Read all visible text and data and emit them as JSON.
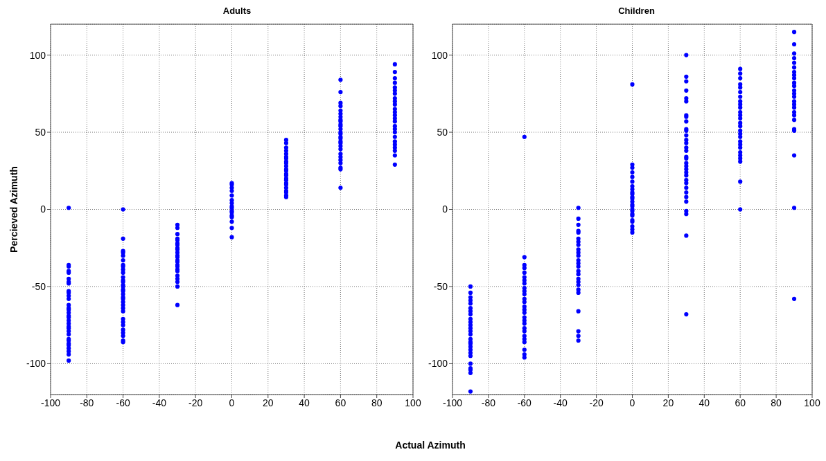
{
  "chart_data": [
    {
      "type": "scatter",
      "title": "Adults",
      "ylabel": "Percieved Azimuth",
      "xlabel": "Actual Azimuth",
      "marker": "circle",
      "grid": true,
      "xlim": [
        -100,
        100
      ],
      "xticks": [
        -100,
        -80,
        -60,
        -40,
        -20,
        0,
        20,
        40,
        60,
        80,
        100
      ],
      "ylim": [
        -120,
        120
      ],
      "yticks": [
        -100,
        -50,
        0,
        50,
        100
      ],
      "series": [
        {
          "color": "#0000ff",
          "x": [
            -90,
            -90,
            -90,
            -90,
            -90,
            -90,
            -90,
            -90,
            -90,
            -90,
            -90,
            -90,
            -90,
            -90,
            -90,
            -90,
            -90,
            -90,
            -90,
            -90,
            -90,
            -90,
            -90,
            -90,
            -90,
            -90,
            -90,
            -90,
            -90,
            -90,
            -90,
            -90,
            -60,
            -60,
            -60,
            -60,
            -60,
            -60,
            -60,
            -60,
            -60,
            -60,
            -60,
            -60,
            -60,
            -60,
            -60,
            -60,
            -60,
            -60,
            -60,
            -60,
            -60,
            -60,
            -60,
            -60,
            -60,
            -60,
            -60,
            -60,
            -60,
            -60,
            -60,
            -60,
            -30,
            -30,
            -30,
            -30,
            -30,
            -30,
            -30,
            -30,
            -30,
            -30,
            -30,
            -30,
            -30,
            -30,
            -30,
            -30,
            -30,
            -30,
            -30,
            -30,
            -30,
            -30,
            -30,
            0,
            0,
            0,
            0,
            0,
            0,
            0,
            0,
            0,
            0,
            0,
            0,
            0,
            0,
            0,
            0,
            30,
            30,
            30,
            30,
            30,
            30,
            30,
            30,
            30,
            30,
            30,
            30,
            30,
            30,
            30,
            30,
            30,
            30,
            30,
            30,
            30,
            30,
            30,
            60,
            60,
            60,
            60,
            60,
            60,
            60,
            60,
            60,
            60,
            60,
            60,
            60,
            60,
            60,
            60,
            60,
            60,
            60,
            60,
            60,
            60,
            60,
            60,
            60,
            60,
            60,
            90,
            90,
            90,
            90,
            90,
            90,
            90,
            90,
            90,
            90,
            90,
            90,
            90,
            90,
            90,
            90,
            90,
            90,
            90,
            90,
            90,
            90,
            90,
            90,
            90
          ],
          "values": [
            1,
            -36,
            -37,
            -40,
            -41,
            -45,
            -47,
            -48,
            -53,
            -54,
            -56,
            -58,
            -62,
            -64,
            -65,
            -67,
            -69,
            -70,
            -72,
            -74,
            -76,
            -77,
            -79,
            -81,
            -84,
            -85,
            -87,
            -88,
            -90,
            -92,
            -94,
            -98,
            0,
            -19,
            -27,
            -28,
            -30,
            -33,
            -36,
            -37,
            -39,
            -41,
            -44,
            -46,
            -47,
            -49,
            -50,
            -52,
            -53,
            -55,
            -57,
            -58,
            -60,
            -62,
            -64,
            -66,
            -71,
            -73,
            -75,
            -78,
            -80,
            -82,
            -85,
            -86,
            -10,
            -12,
            -16,
            -19,
            -20,
            -22,
            -23,
            -25,
            -26,
            -28,
            -30,
            -31,
            -33,
            -34,
            -36,
            -37,
            -39,
            -40,
            -43,
            -45,
            -47,
            -50,
            -62,
            17,
            16,
            14,
            12,
            9,
            6,
            4,
            2,
            1,
            -1,
            -2,
            -4,
            -5,
            -8,
            -12,
            -18,
            45,
            43,
            40,
            38,
            36,
            34,
            33,
            31,
            30,
            28,
            26,
            25,
            23,
            22,
            20,
            19,
            17,
            16,
            14,
            12,
            11,
            9,
            8,
            84,
            76,
            69,
            67,
            64,
            62,
            60,
            58,
            57,
            55,
            54,
            52,
            50,
            49,
            47,
            46,
            44,
            43,
            41,
            39,
            36,
            34,
            32,
            30,
            27,
            26,
            14,
            94,
            89,
            85,
            82,
            79,
            77,
            75,
            72,
            70,
            68,
            65,
            63,
            61,
            59,
            57,
            54,
            52,
            50,
            47,
            44,
            42,
            40,
            38,
            35,
            29
          ]
        }
      ]
    },
    {
      "type": "scatter",
      "title": "Children",
      "marker": "circle",
      "grid": true,
      "xlim": [
        -100,
        100
      ],
      "xticks": [
        -100,
        -80,
        -60,
        -40,
        -20,
        0,
        20,
        40,
        60,
        80,
        100
      ],
      "ylim": [
        -120,
        120
      ],
      "yticks": [
        -100,
        -50,
        0,
        50,
        100
      ],
      "series": [
        {
          "color": "#0000ff",
          "x": [
            -90,
            -90,
            -90,
            -90,
            -90,
            -90,
            -90,
            -90,
            -90,
            -90,
            -90,
            -90,
            -90,
            -90,
            -90,
            -90,
            -90,
            -90,
            -90,
            -90,
            -90,
            -90,
            -90,
            -90,
            -90,
            -90,
            -60,
            -60,
            -60,
            -60,
            -60,
            -60,
            -60,
            -60,
            -60,
            -60,
            -60,
            -60,
            -60,
            -60,
            -60,
            -60,
            -60,
            -60,
            -60,
            -60,
            -60,
            -60,
            -60,
            -60,
            -60,
            -60,
            -60,
            -30,
            -30,
            -30,
            -30,
            -30,
            -30,
            -30,
            -30,
            -30,
            -30,
            -30,
            -30,
            -30,
            -30,
            -30,
            -30,
            -30,
            -30,
            -30,
            -30,
            -30,
            -30,
            -30,
            -30,
            -30,
            0,
            0,
            0,
            0,
            0,
            0,
            0,
            0,
            0,
            0,
            0,
            0,
            0,
            0,
            0,
            0,
            0,
            0,
            0,
            0,
            0,
            0,
            0,
            0,
            30,
            30,
            30,
            30,
            30,
            30,
            30,
            30,
            30,
            30,
            30,
            30,
            30,
            30,
            30,
            30,
            30,
            30,
            30,
            30,
            30,
            30,
            30,
            30,
            30,
            30,
            30,
            30,
            30,
            30,
            30,
            30,
            30,
            60,
            60,
            60,
            60,
            60,
            60,
            60,
            60,
            60,
            60,
            60,
            60,
            60,
            60,
            60,
            60,
            60,
            60,
            60,
            60,
            60,
            60,
            60,
            60,
            60,
            60,
            60,
            90,
            90,
            90,
            90,
            90,
            90,
            90,
            90,
            90,
            90,
            90,
            90,
            90,
            90,
            90,
            90,
            90,
            90,
            90,
            90,
            90,
            90,
            90,
            90,
            90
          ],
          "values": [
            -50,
            -54,
            -57,
            -59,
            -61,
            -64,
            -66,
            -68,
            -71,
            -73,
            -75,
            -77,
            -79,
            -81,
            -84,
            -86,
            -87,
            -89,
            -91,
            -93,
            -95,
            -100,
            -103,
            -104,
            -106,
            -118,
            47,
            -31,
            -36,
            -38,
            -41,
            -44,
            -46,
            -48,
            -51,
            -53,
            -55,
            -58,
            -60,
            -63,
            -65,
            -67,
            -70,
            -72,
            -74,
            -77,
            -79,
            -82,
            -84,
            -86,
            -91,
            -94,
            -96,
            1,
            -6,
            -10,
            -14,
            -15,
            -19,
            -21,
            -23,
            -26,
            -28,
            -30,
            -33,
            -35,
            -37,
            -40,
            -42,
            -45,
            -47,
            -49,
            -52,
            -54,
            -66,
            -79,
            -82,
            -85,
            81,
            29,
            27,
            24,
            21,
            18,
            15,
            13,
            11,
            10,
            8,
            7,
            5,
            3,
            2,
            0,
            -1,
            -3,
            -4,
            -7,
            -8,
            -11,
            -13,
            -15,
            100,
            86,
            83,
            77,
            72,
            70,
            61,
            60,
            57,
            52,
            51,
            48,
            45,
            43,
            40,
            38,
            34,
            33,
            30,
            28,
            26,
            24,
            22,
            19,
            17,
            14,
            11,
            8,
            5,
            -1,
            -3,
            -17,
            -68,
            91,
            88,
            85,
            81,
            79,
            76,
            73,
            70,
            68,
            66,
            63,
            61,
            59,
            56,
            54,
            51,
            49,
            47,
            44,
            42,
            40,
            37,
            35,
            33,
            31,
            18,
            0,
            115,
            107,
            101,
            98,
            95,
            92,
            89,
            87,
            85,
            82,
            80,
            77,
            75,
            73,
            70,
            68,
            66,
            63,
            61,
            58,
            52,
            51,
            35,
            1,
            -58
          ]
        }
      ]
    }
  ]
}
